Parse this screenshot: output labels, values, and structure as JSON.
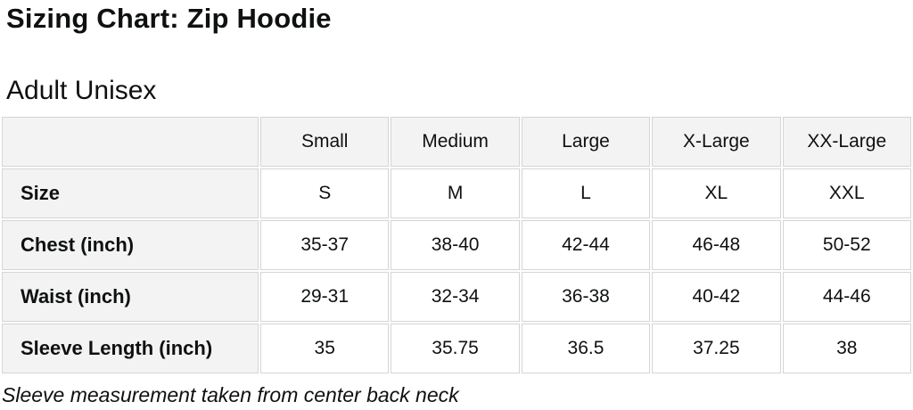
{
  "page": {
    "title": "Sizing Chart: Zip Hoodie",
    "subtitle": "Adult Unisex",
    "footnote": "Sleeve measurement taken from center back neck"
  },
  "table": {
    "corner_label": "",
    "column_headers": [
      "Small",
      "Medium",
      "Large",
      "X-Large",
      "XX-Large"
    ],
    "rows": [
      {
        "label": "Size",
        "values": [
          "S",
          "M",
          "L",
          "XL",
          "XXL"
        ]
      },
      {
        "label": "Chest (inch)",
        "values": [
          "35-37",
          "38-40",
          "42-44",
          "46-48",
          "50-52"
        ]
      },
      {
        "label": "Waist (inch)",
        "values": [
          "29-31",
          "32-34",
          "36-38",
          "40-42",
          "44-46"
        ]
      },
      {
        "label": "Sleeve Length (inch)",
        "values": [
          "35",
          "35.75",
          "36.5",
          "37.25",
          "38"
        ]
      }
    ]
  },
  "colors": {
    "header_bg": "#f3f3f3",
    "cell_bg": "#ffffff",
    "border": "#d5d5d5",
    "text": "#0f1111",
    "background": "#ffffff"
  }
}
